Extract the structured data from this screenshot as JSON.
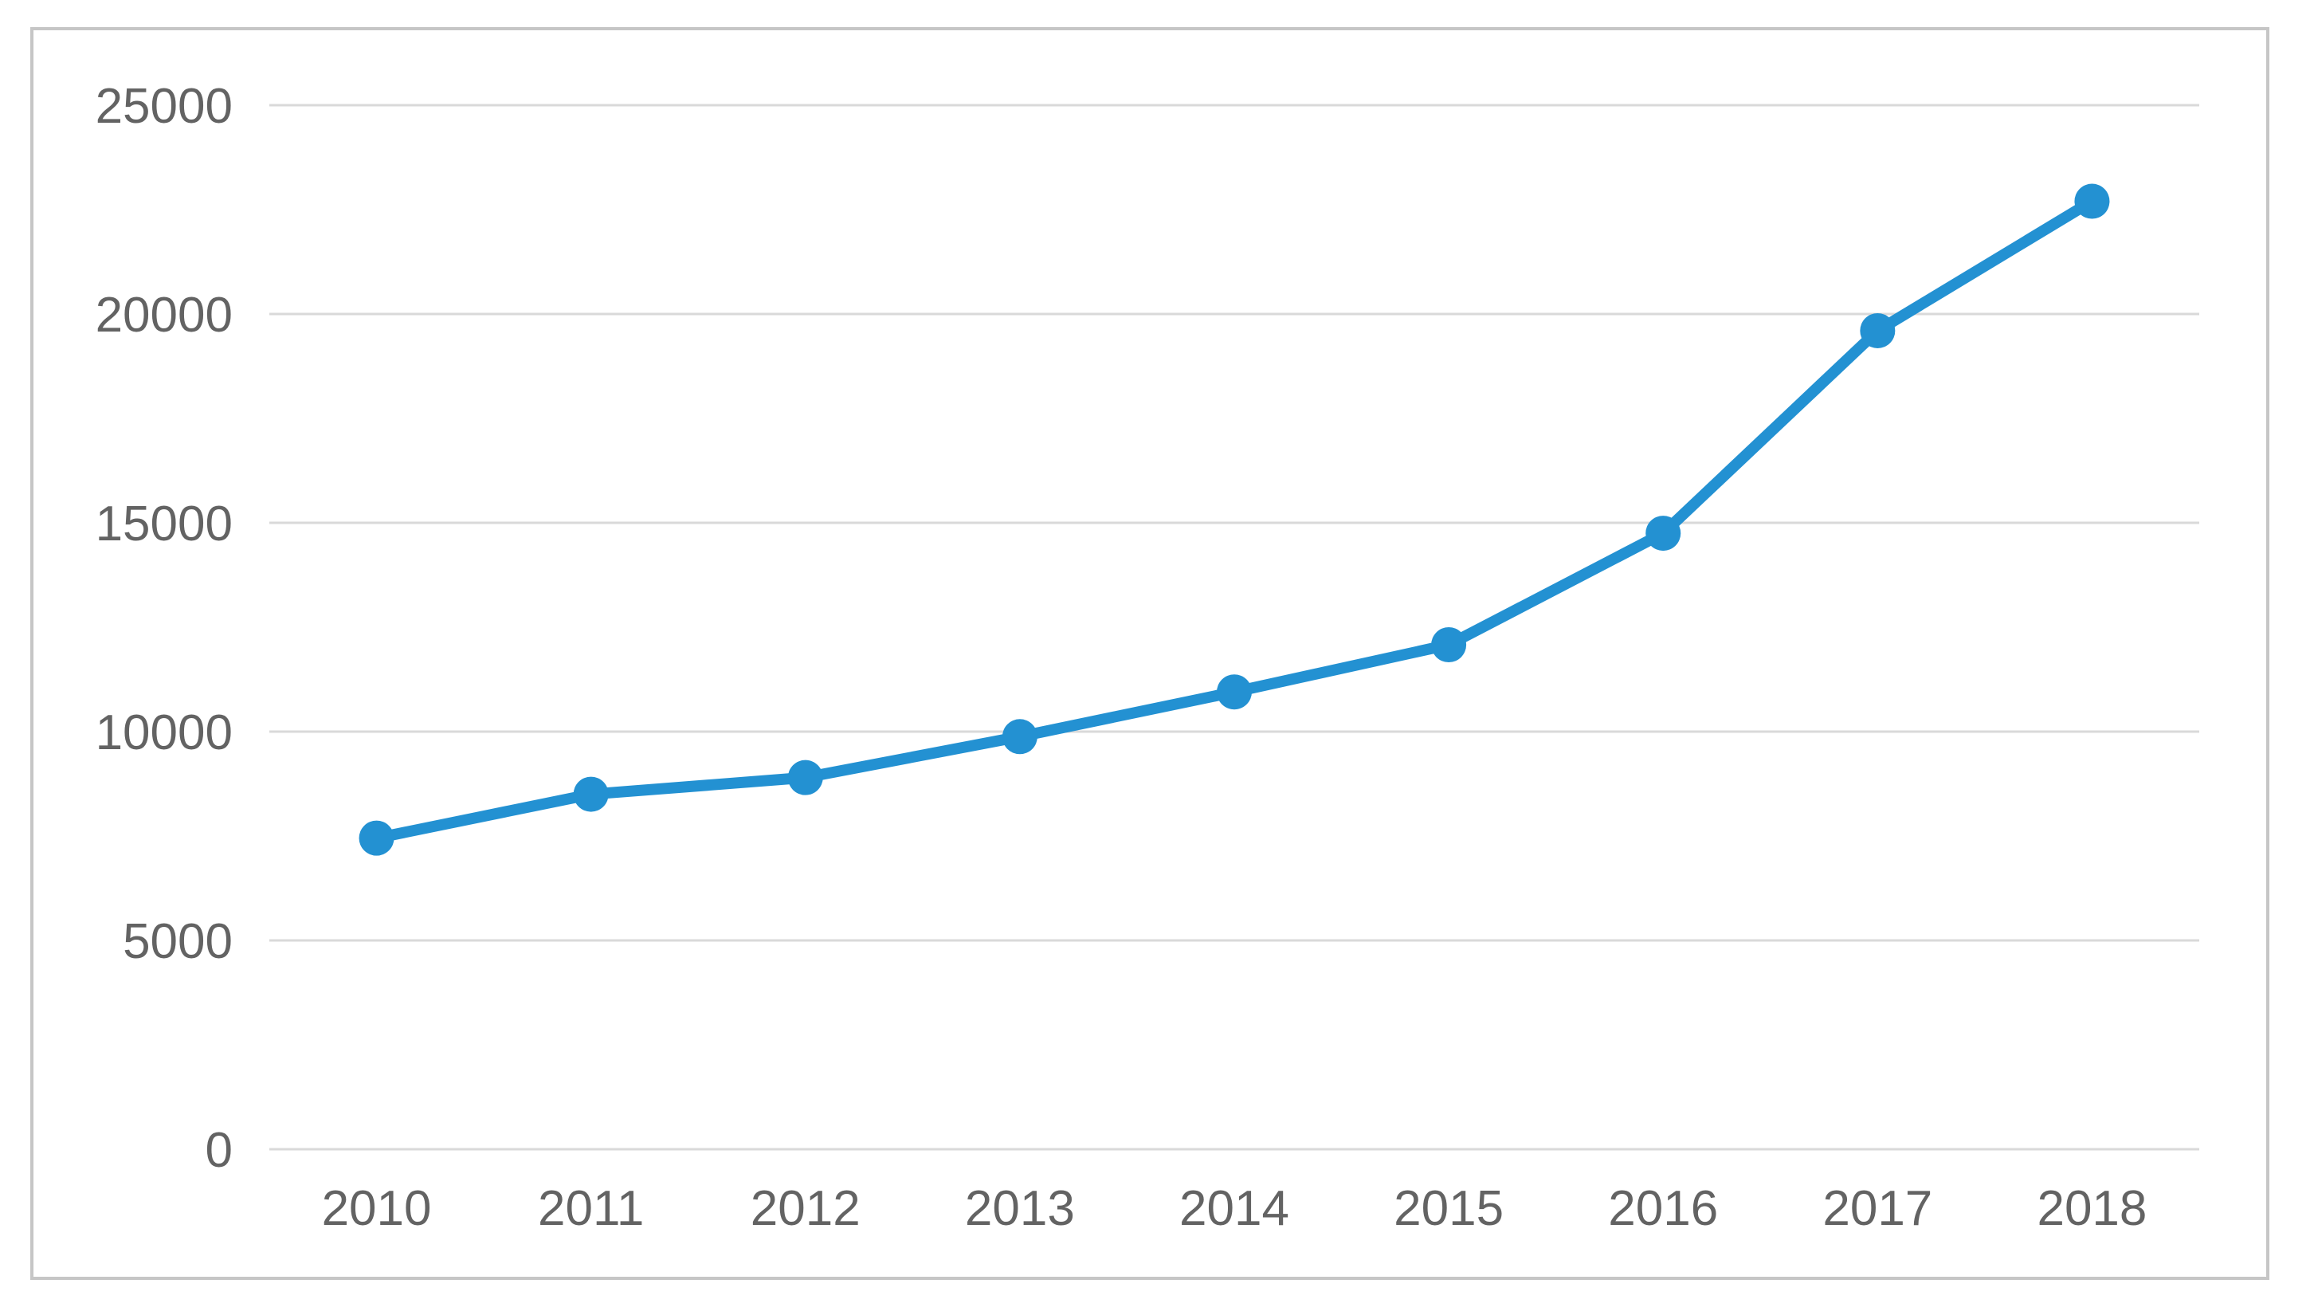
{
  "chart_data": {
    "type": "line",
    "title": "",
    "xlabel": "",
    "ylabel": "",
    "categories": [
      "2010",
      "2011",
      "2012",
      "2013",
      "2014",
      "2015",
      "2016",
      "2017",
      "2018"
    ],
    "values": [
      7450,
      8500,
      8900,
      9880,
      10950,
      12080,
      14750,
      19600,
      22700
    ],
    "ylim": [
      0,
      25000
    ],
    "yticks": [
      0,
      5000,
      10000,
      15000,
      20000,
      25000
    ],
    "ytick_labels": [
      "0",
      "5000",
      "10000",
      "15000",
      "20000",
      "25000"
    ],
    "grid": "horizontal",
    "legend_position": "none",
    "marker": "circle"
  },
  "style": {
    "line_color": "#2391d2",
    "marker_color": "#2391d2",
    "gridline_color": "#d9d9d9",
    "frame_border_color": "#c6c6c6",
    "label_color": "#636363",
    "background_color": "#ffffff"
  }
}
